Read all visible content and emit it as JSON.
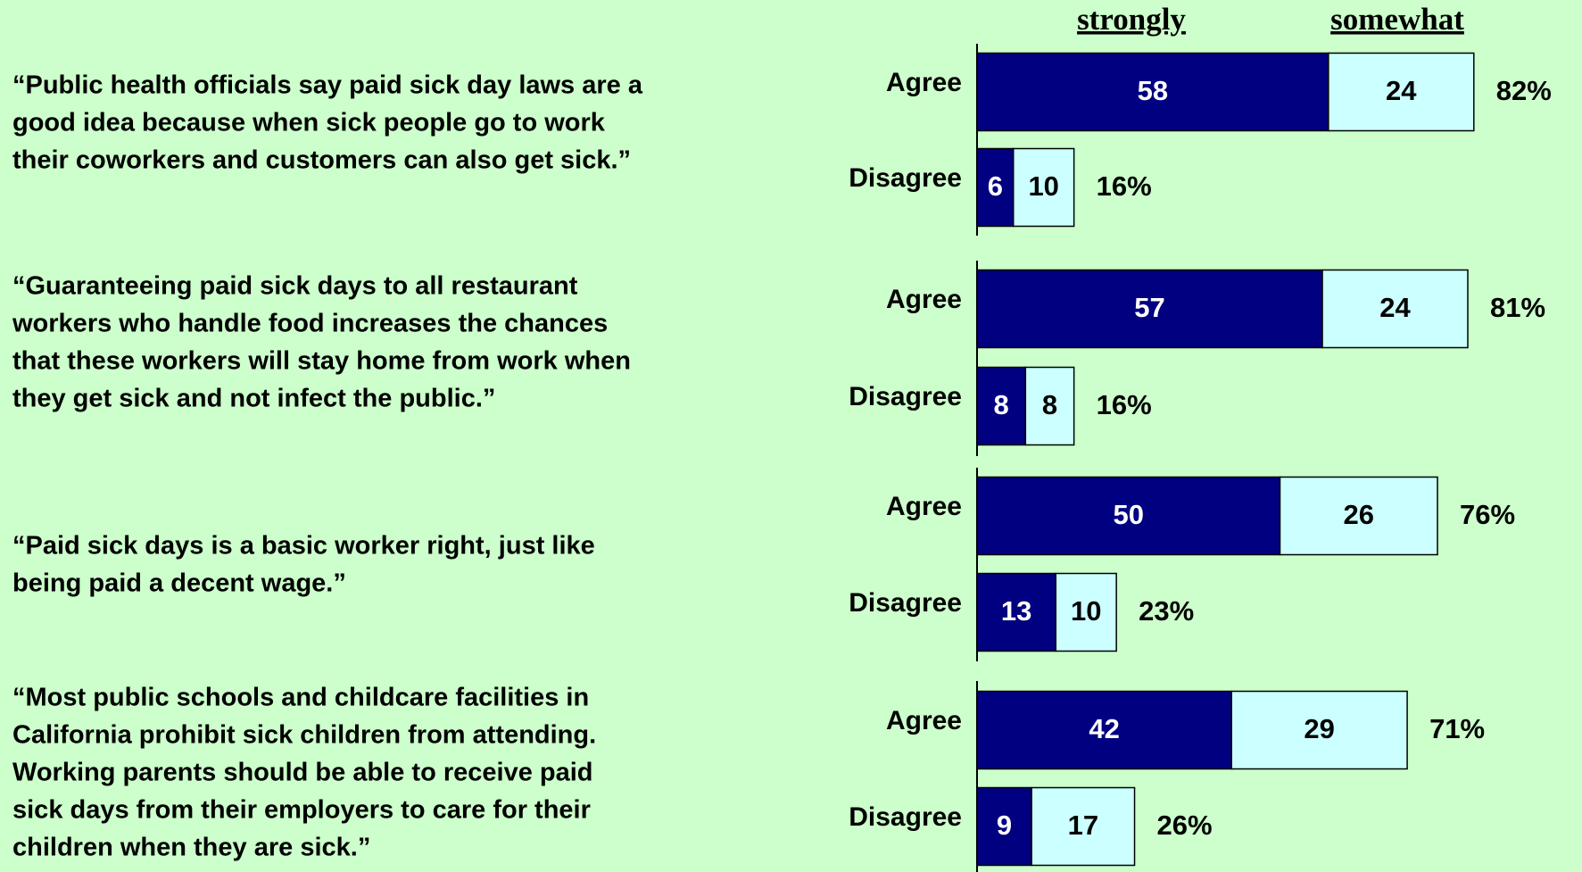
{
  "chart_data": {
    "type": "bar",
    "orientation": "horizontal",
    "stacked": true,
    "series": [
      {
        "name": "strongly",
        "color": "#000080"
      },
      {
        "name": "somewhat",
        "color": "#ccffff"
      }
    ],
    "groups": [
      {
        "statement": [
          "“Public health officials say paid sick day laws are a",
          "good idea because when sick people go to work",
          "their coworkers and customers can also get sick.”"
        ],
        "rows": [
          {
            "category": "Agree",
            "values": [
              58,
              24
            ],
            "total": {
              "value": 82,
              "label": "82%"
            }
          },
          {
            "category": "Disagree",
            "values": [
              6,
              10
            ],
            "total": {
              "value": 16,
              "label": "16%"
            }
          }
        ]
      },
      {
        "statement": [
          "“Guaranteeing paid sick days to all restaurant",
          "workers who handle food increases the chances",
          "that these workers will stay home from work when",
          "they get sick and not infect the public.”"
        ],
        "rows": [
          {
            "category": "Agree",
            "values": [
              57,
              24
            ],
            "total": {
              "value": 81,
              "label": "81%"
            }
          },
          {
            "category": "Disagree",
            "values": [
              8,
              8
            ],
            "total": {
              "value": 16,
              "label": "16%"
            }
          }
        ]
      },
      {
        "statement": [
          "“Paid sick days is a basic worker right, just like",
          "being paid a decent wage.”"
        ],
        "rows": [
          {
            "category": "Agree",
            "values": [
              50,
              26
            ],
            "total": {
              "value": 76,
              "label": "76%"
            }
          },
          {
            "category": "Disagree",
            "values": [
              13,
              10
            ],
            "total": {
              "value": 23,
              "label": "23%"
            }
          }
        ]
      },
      {
        "statement": [
          "“Most public schools and childcare facilities in",
          "California prohibit sick children from attending.",
          "Working parents should be able to receive paid",
          "sick days from their employers to care for their",
          "children when they are sick.”"
        ],
        "rows": [
          {
            "category": "Agree",
            "values": [
              42,
              29
            ],
            "total": {
              "value": 71,
              "label": "71%"
            }
          },
          {
            "category": "Disagree",
            "values": [
              9,
              17
            ],
            "total": {
              "value": 26,
              "label": "26%"
            }
          }
        ]
      }
    ]
  }
}
